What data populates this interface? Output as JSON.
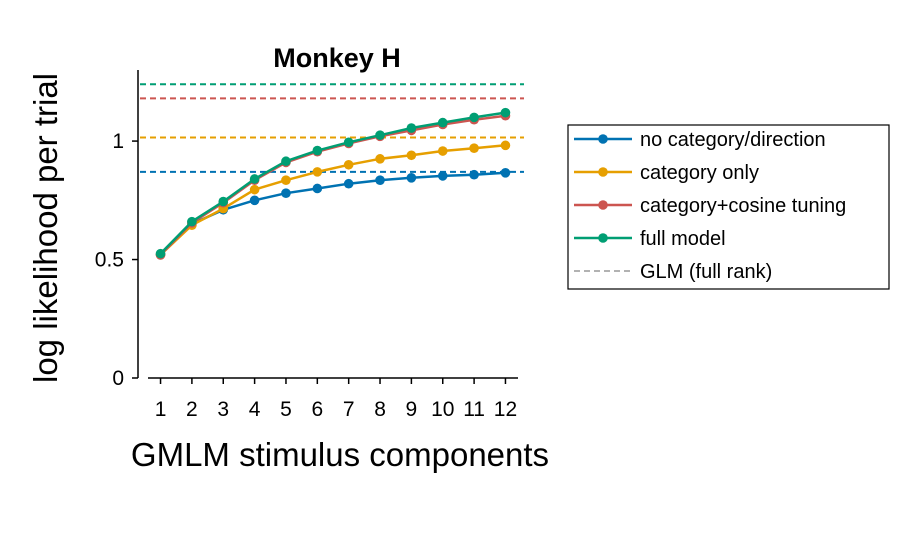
{
  "chart_data": {
    "type": "line",
    "title": "Monkey H",
    "xlabel": "GMLM stimulus components",
    "ylabel": "log likelihood per trial",
    "x": [
      1,
      2,
      3,
      4,
      5,
      6,
      7,
      8,
      9,
      10,
      11,
      12
    ],
    "xlim": [
      0.6,
      12.4
    ],
    "ylim": [
      0,
      1.3
    ],
    "yticks": [
      0,
      0.5,
      1
    ],
    "ytick_labels": [
      "0",
      "0.5",
      "1"
    ],
    "xtick_labels": [
      "1",
      "2",
      "3",
      "4",
      "5",
      "6",
      "7",
      "8",
      "9",
      "10",
      "11",
      "12"
    ],
    "grid": false,
    "legend_position": "right",
    "series": [
      {
        "name": "no category/direction",
        "color": "#0072b2",
        "values": [
          0.52,
          0.65,
          0.71,
          0.75,
          0.78,
          0.8,
          0.82,
          0.835,
          0.845,
          0.853,
          0.858,
          0.866
        ]
      },
      {
        "name": "category only",
        "color": "#e69f00",
        "values": [
          0.52,
          0.645,
          0.715,
          0.795,
          0.835,
          0.87,
          0.9,
          0.925,
          0.94,
          0.958,
          0.97,
          0.982
        ]
      },
      {
        "name": "category+cosine tuning",
        "color": "#cc5550",
        "values": [
          0.52,
          0.655,
          0.74,
          0.835,
          0.91,
          0.955,
          0.99,
          1.02,
          1.045,
          1.07,
          1.09,
          1.107
        ]
      },
      {
        "name": "full model",
        "color": "#009e73",
        "values": [
          0.525,
          0.66,
          0.745,
          0.84,
          0.915,
          0.96,
          0.995,
          1.025,
          1.055,
          1.078,
          1.1,
          1.12
        ]
      }
    ],
    "reference_lines": [
      {
        "series": "no category/direction",
        "color": "#0072b2",
        "value": 0.87
      },
      {
        "series": "category only",
        "color": "#e69f00",
        "value": 1.015
      },
      {
        "series": "category+cosine tuning",
        "color": "#cc5550",
        "value": 1.18
      },
      {
        "series": "full model",
        "color": "#009e73",
        "value": 1.24
      }
    ],
    "legend_ref_label": "GLM (full rank)",
    "legend_ref_color": "#999999"
  }
}
